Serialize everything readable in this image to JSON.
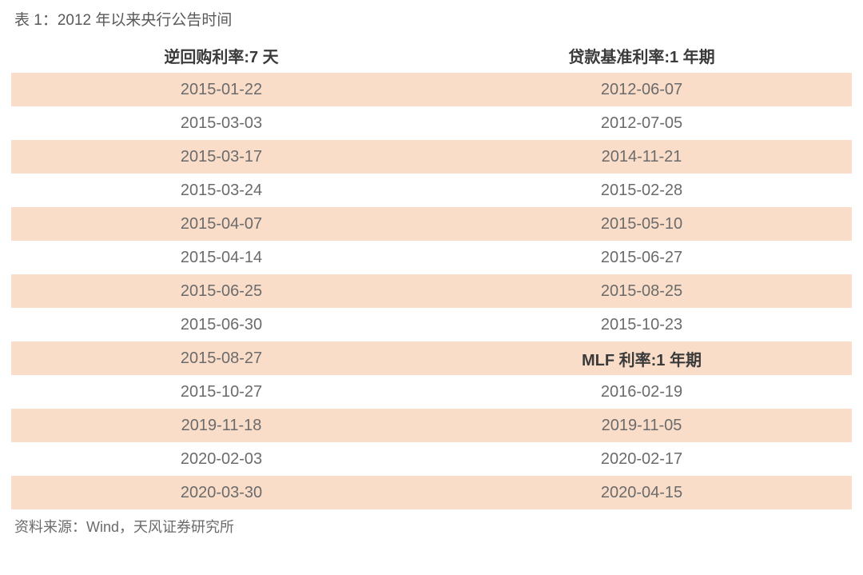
{
  "title": "表 1：2012 年以来央行公告时间",
  "columns": [
    "逆回购利率:7 天",
    "贷款基准利率:1 年期"
  ],
  "rows": [
    {
      "left": "2015-01-22",
      "right": "2012-06-07",
      "leftBold": false,
      "rightBold": false
    },
    {
      "left": "2015-03-03",
      "right": "2012-07-05",
      "leftBold": false,
      "rightBold": false
    },
    {
      "left": "2015-03-17",
      "right": "2014-11-21",
      "leftBold": false,
      "rightBold": false
    },
    {
      "left": "2015-03-24",
      "right": "2015-02-28",
      "leftBold": false,
      "rightBold": false
    },
    {
      "left": "2015-04-07",
      "right": "2015-05-10",
      "leftBold": false,
      "rightBold": false
    },
    {
      "left": "2015-04-14",
      "right": "2015-06-27",
      "leftBold": false,
      "rightBold": false
    },
    {
      "left": "2015-06-25",
      "right": "2015-08-25",
      "leftBold": false,
      "rightBold": false
    },
    {
      "left": "2015-06-30",
      "right": "2015-10-23",
      "leftBold": false,
      "rightBold": false
    },
    {
      "left": "2015-08-27",
      "right": "MLF 利率:1 年期",
      "leftBold": false,
      "rightBold": true
    },
    {
      "left": "2015-10-27",
      "right": "2016-02-19",
      "leftBold": false,
      "rightBold": false
    },
    {
      "left": "2019-11-18",
      "right": "2019-11-05",
      "leftBold": false,
      "rightBold": false
    },
    {
      "left": "2020-02-03",
      "right": "2020-02-17",
      "leftBold": false,
      "rightBold": false
    },
    {
      "left": "2020-03-30",
      "right": "2020-04-15",
      "leftBold": false,
      "rightBold": false
    }
  ],
  "source": "资料来源：Wind，天风证券研究所",
  "styling": {
    "oddRowColor": "#f9ddc9",
    "evenRowColor": "#ffffff",
    "textColor": "#6b6b6b",
    "headerTextColor": "#3a3a3a",
    "titleFontSize": 19,
    "cellFontSize": 20,
    "sourceFontSize": 18
  }
}
